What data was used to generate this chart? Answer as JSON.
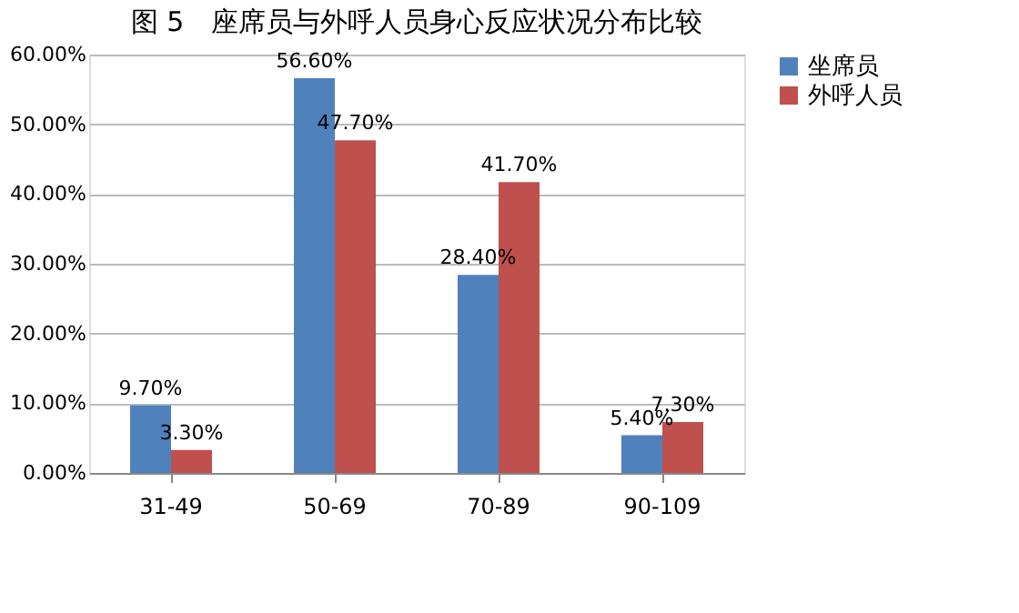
{
  "chart_data": {
    "type": "bar",
    "title": "图 5　座席员与外呼人员身心反应状况分布比较",
    "categories": [
      "31-49",
      "50-69",
      "70-89",
      "90-109"
    ],
    "series": [
      {
        "name": "坐席员",
        "color": "#4f81bd",
        "values": [
          9.7,
          56.6,
          28.4,
          5.4
        ],
        "value_labels": [
          "9.70%",
          "56.60%",
          "28.40%",
          "5.40%"
        ]
      },
      {
        "name": "外呼人员",
        "color": "#c0504d",
        "values": [
          3.3,
          47.7,
          41.7,
          7.3
        ],
        "value_labels": [
          "3.30%",
          "47.70%",
          "41.70%",
          "7.30%"
        ]
      }
    ],
    "ylim": [
      0,
      60
    ],
    "yticks": [
      {
        "value": 0,
        "label": "0.00%"
      },
      {
        "value": 10,
        "label": "10.00%"
      },
      {
        "value": 20,
        "label": "20.00%"
      },
      {
        "value": 30,
        "label": "30.00%"
      },
      {
        "value": 40,
        "label": "40.00%"
      },
      {
        "value": 50,
        "label": "50.00%"
      },
      {
        "value": 60,
        "label": "60.00%"
      }
    ],
    "grid": "y",
    "legend": "right"
  }
}
